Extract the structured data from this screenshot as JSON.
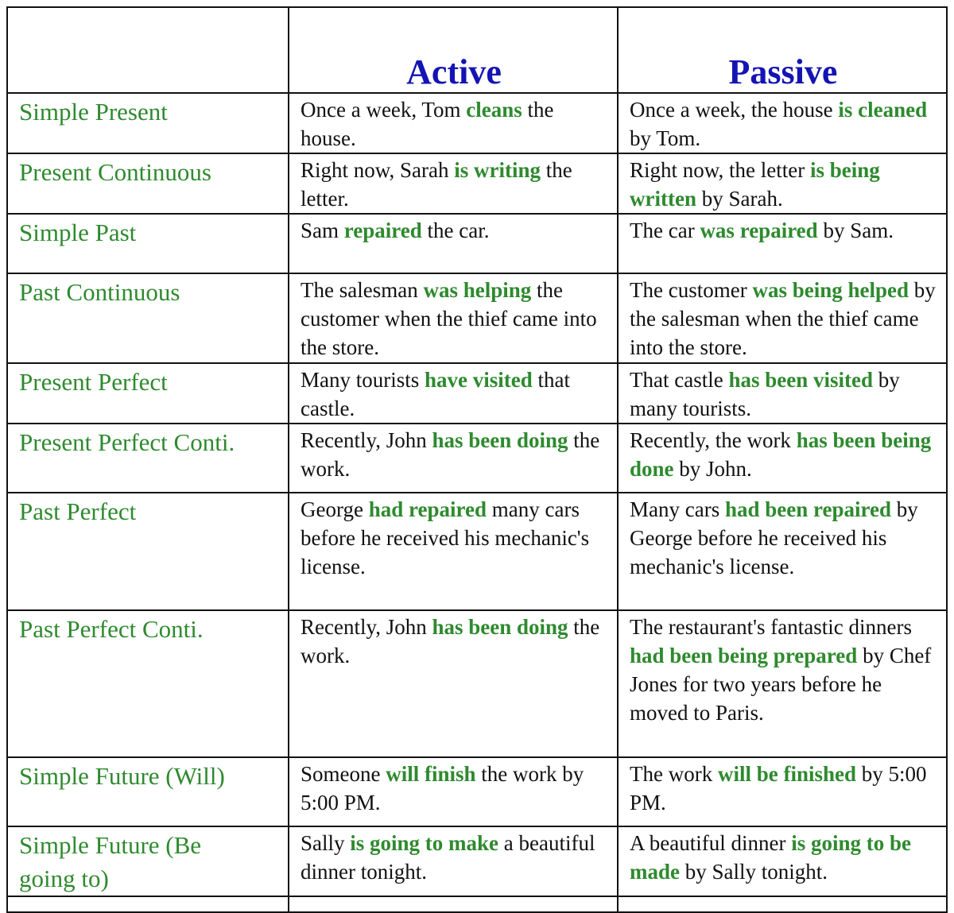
{
  "table": {
    "columns": [
      "Active",
      "Passive"
    ],
    "rows": [
      {
        "tense": "Simple Present",
        "active": [
          "Once a week, Tom ",
          "cleans",
          " the house."
        ],
        "passive": [
          "Once a week, the house ",
          "is cleaned",
          " by Tom."
        ]
      },
      {
        "tense": "Present Continuous",
        "active": [
          "Right now, Sarah ",
          "is writing",
          " the letter."
        ],
        "passive": [
          "Right now, the letter ",
          "is being written",
          " by Sarah."
        ]
      },
      {
        "tense": "Simple Past",
        "active": [
          "Sam ",
          "repaired",
          " the car."
        ],
        "passive": [
          "The car ",
          "was repaired",
          " by Sam."
        ]
      },
      {
        "tense": "Past Continuous",
        "active": [
          "The salesman ",
          "was helping",
          " the customer when the thief came into the store."
        ],
        "passive": [
          "The customer ",
          "was being helped",
          " by the salesman when the thief came into the store."
        ]
      },
      {
        "tense": "Present Perfect",
        "active": [
          "Many tourists ",
          "have visited",
          " that castle."
        ],
        "passive": [
          "That castle ",
          "has been visited",
          " by many tourists."
        ]
      },
      {
        "tense": "Present Perfect Conti.",
        "active": [
          "Recently, John ",
          "has been doing",
          " the work."
        ],
        "passive": [
          "Recently, the work ",
          "has been being done",
          " by John."
        ]
      },
      {
        "tense": "Past Perfect",
        "active": [
          "George ",
          "had repaired",
          " many cars before he received his mechanic's license."
        ],
        "passive": [
          "Many cars ",
          "had been repaired",
          " by George before he received his mechanic's license."
        ]
      },
      {
        "tense": "Past Perfect Conti.",
        "active": [
          "Recently, John ",
          "has been doing",
          " the work."
        ],
        "passive": [
          "The restaurant's fantastic dinners ",
          "had been being prepared",
          " by Chef Jones for two years before he moved to Paris."
        ]
      },
      {
        "tense": "Simple Future (Will)",
        "active": [
          "Someone ",
          "will finish",
          " the work by 5:00 PM."
        ],
        "passive": [
          "The work ",
          "will be finished",
          " by 5:00 PM."
        ]
      },
      {
        "tense": "Simple Future (Be going to)",
        "active": [
          "Sally ",
          "is going to make",
          " a beautiful dinner tonight."
        ],
        "passive": [
          "A beautiful dinner ",
          "is going to be made",
          " by Sally tonight."
        ]
      }
    ]
  }
}
